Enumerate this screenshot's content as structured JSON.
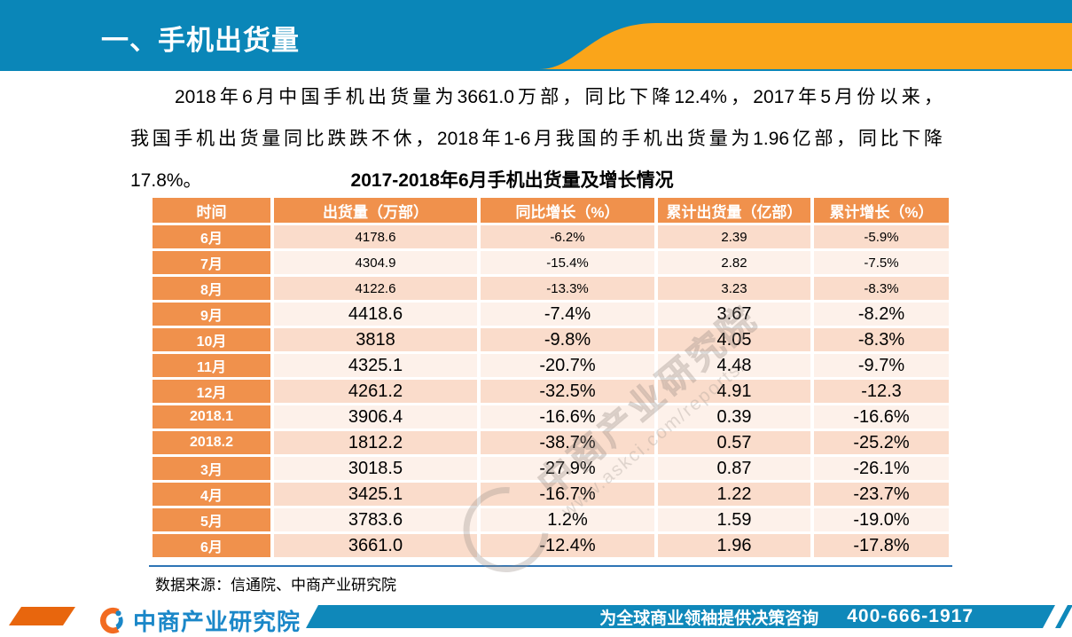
{
  "header": {
    "title": "一、手机出货量"
  },
  "paragraph": {
    "line1": "2018年6月中国手机出货量为3661.0万部，同比下降12.4%，2017年5月份以来，",
    "line2": "我国手机出货量同比跌跌不休，2018年1-6月我国的手机出货量为1.96亿部，同比下降",
    "line3": "17.8%。"
  },
  "table": {
    "title": "2017-2018年6月手机出货量及增长情况",
    "columns": [
      "时间",
      "出货量（万部）",
      "同比增长（%）",
      "累计出货量（亿部）",
      "累计增长（%）"
    ],
    "rows": [
      [
        "6月",
        "4178.6",
        "-6.2%",
        "2.39",
        "-5.9%"
      ],
      [
        "7月",
        "4304.9",
        "-15.4%",
        "2.82",
        "-7.5%"
      ],
      [
        "8月",
        "4122.6",
        "-13.3%",
        "3.23",
        "-8.3%"
      ],
      [
        "9月",
        "4418.6",
        "-7.4%",
        "3.67",
        "-8.2%"
      ],
      [
        "10月",
        "3818",
        "-9.8%",
        "4.05",
        "-8.3%"
      ],
      [
        "11月",
        "4325.1",
        "-20.7%",
        "4.48",
        "-9.7%"
      ],
      [
        "12月",
        "4261.2",
        "-32.5%",
        "4.91",
        "-12.3"
      ],
      [
        "2018.1",
        "3906.4",
        "-16.6%",
        "0.39",
        "-16.6%"
      ],
      [
        "2018.2",
        "1812.2",
        "-38.7%",
        "0.57",
        "-25.2%"
      ],
      [
        "3月",
        "3018.5",
        "-27.9%",
        "0.87",
        "-26.1%"
      ],
      [
        "4月",
        "3425.1",
        "-16.7%",
        "1.22",
        "-23.7%"
      ],
      [
        "5月",
        "3783.6",
        "1.2%",
        "1.59",
        "-19.0%"
      ],
      [
        "6月",
        "3661.0",
        "-12.4%",
        "1.96",
        "-17.8%"
      ]
    ],
    "source": "数据来源：信通院、中商产业研究院"
  },
  "watermark": {
    "line1": "中商产业研究院",
    "line2": "www.askci.com/reports/"
  },
  "footer": {
    "logo_text": "中商产业研究院",
    "slogan": "为全球商业领袖提供决策咨询",
    "phone": "400-666-1917"
  },
  "colors": {
    "header_blue": "#0A86B8",
    "swoosh_orange": "#FAA51A",
    "table_header_orange": "#F0914C",
    "stripe_dark": "#FADCCB",
    "stripe_light": "#FDF1EA",
    "rule_blue": "#2E74B5",
    "footer_bar_blue": "#0F88BA",
    "footer_accent_orange": "#E8660D",
    "logo_blue": "#1A87C8",
    "logo_icon_orange": "#F26B21"
  }
}
